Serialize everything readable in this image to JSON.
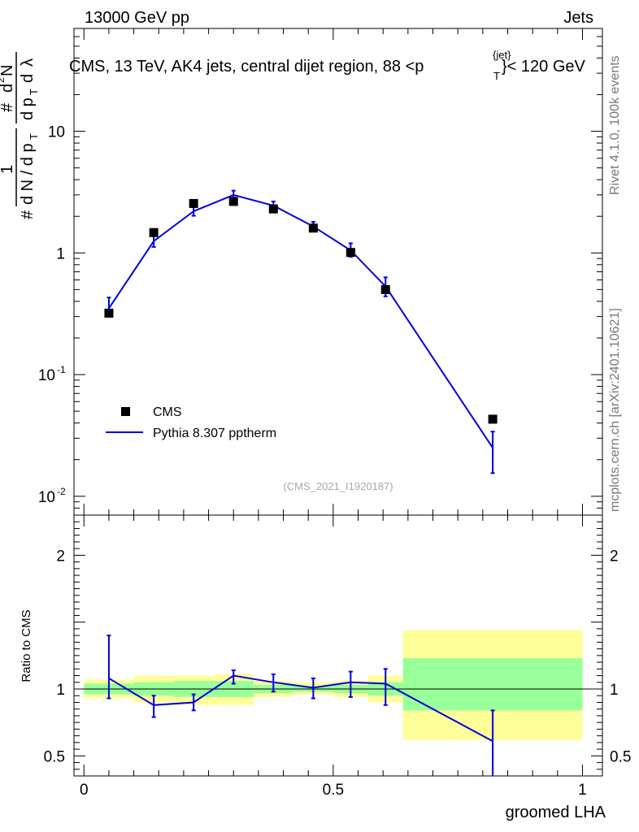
{
  "header": {
    "left": "13000 GeV pp",
    "right": "Jets"
  },
  "side_labels": {
    "rivet": "Rivet 4.1.0,  100k events",
    "mcplots": "mcplots.cern.ch [arXiv:2401.10621]"
  },
  "colors": {
    "mc": "#0000dd",
    "data": "#000000",
    "band_inner": "#99ff99",
    "band_outer": "#ffff99"
  },
  "chart_data": [
    {
      "type": "scatter",
      "title_prefix": "CMS, 13 TeV, AK4 jets, central dijet region, 88 <p",
      "title_sup": "{jet}",
      "title_sub": "T",
      "title_suffix": "}< 120 GeV",
      "ylabel": "# (1/ dN/dpT) (#d²N / dpT dλ)",
      "yscale": "log",
      "ylim": [
        0.007,
        70
      ],
      "xlim": [
        -0.02,
        1.04
      ],
      "y_ticks": [
        {
          "value": 0.01,
          "base": "10",
          "exp": "-2"
        },
        {
          "value": 0.1,
          "base": "10",
          "exp": "-1"
        },
        {
          "value": 1,
          "base": "1",
          "exp": ""
        },
        {
          "value": 10,
          "base": "10",
          "exp": ""
        }
      ],
      "watermark": "(CMS_2021_I1920187)",
      "legend": {
        "data_label": "CMS",
        "mc_label": "Pythia 8.307 pptherm",
        "position": "bottom-left"
      },
      "data": {
        "name": "CMS",
        "x": [
          0.05,
          0.14,
          0.22,
          0.3,
          0.38,
          0.46,
          0.535,
          0.605,
          0.82
        ],
        "y": [
          0.32,
          1.47,
          2.55,
          2.65,
          2.3,
          1.6,
          1.01,
          0.5,
          0.043
        ]
      },
      "mc": {
        "name": "Pythia 8.307 pptherm",
        "x": [
          0.05,
          0.14,
          0.22,
          0.3,
          0.38,
          0.46,
          0.535,
          0.605,
          0.82
        ],
        "y": [
          0.35,
          1.25,
          2.2,
          3.0,
          2.45,
          1.65,
          1.05,
          0.53,
          0.025
        ],
        "err_low": [
          0.3,
          1.12,
          2.02,
          2.8,
          2.28,
          1.52,
          0.93,
          0.44,
          0.0155
        ],
        "err_high": [
          0.43,
          1.4,
          2.4,
          3.25,
          2.65,
          1.8,
          1.2,
          0.63,
          0.034
        ]
      }
    },
    {
      "type": "line",
      "ylabel": "Ratio to CMS",
      "xlabel": "groomed LHA",
      "ylim": [
        0.35,
        2.3
      ],
      "xlim": [
        -0.02,
        1.04
      ],
      "x_ticks": [
        {
          "value": 0,
          "label": "0"
        },
        {
          "value": 0.5,
          "label": "0.5"
        },
        {
          "value": 1,
          "label": "1"
        }
      ],
      "y_ticks": [
        {
          "value": 0.5,
          "label": "0.5"
        },
        {
          "value": 1,
          "label": "1"
        },
        {
          "value": 2,
          "label": "2"
        }
      ],
      "bands": [
        {
          "x0": 0.0,
          "x1": 0.1,
          "inner": [
            0.96,
            1.04
          ],
          "outer": [
            0.93,
            1.07
          ]
        },
        {
          "x0": 0.1,
          "x1": 0.18,
          "inner": [
            0.95,
            1.05
          ],
          "outer": [
            0.9,
            1.1
          ]
        },
        {
          "x0": 0.18,
          "x1": 0.26,
          "inner": [
            0.94,
            1.06
          ],
          "outer": [
            0.88,
            1.1
          ]
        },
        {
          "x0": 0.26,
          "x1": 0.34,
          "inner": [
            0.94,
            1.06
          ],
          "outer": [
            0.88,
            1.11
          ]
        },
        {
          "x0": 0.34,
          "x1": 0.42,
          "inner": [
            0.97,
            1.03
          ],
          "outer": [
            0.94,
            1.06
          ]
        },
        {
          "x0": 0.42,
          "x1": 0.5,
          "inner": [
            0.98,
            1.02
          ],
          "outer": [
            0.96,
            1.05
          ]
        },
        {
          "x0": 0.5,
          "x1": 0.57,
          "inner": [
            0.97,
            1.03
          ],
          "outer": [
            0.94,
            1.06
          ]
        },
        {
          "x0": 0.57,
          "x1": 0.64,
          "inner": [
            0.95,
            1.05
          ],
          "outer": [
            0.9,
            1.1
          ]
        },
        {
          "x0": 0.64,
          "x1": 1.0,
          "inner": [
            0.84,
            1.23
          ],
          "outer": [
            0.62,
            1.44
          ]
        }
      ],
      "mc": {
        "x": [
          0.05,
          0.14,
          0.22,
          0.3,
          0.38,
          0.46,
          0.535,
          0.605,
          0.82
        ],
        "y": [
          1.08,
          0.88,
          0.9,
          1.1,
          1.05,
          1.01,
          1.05,
          1.04,
          0.61
        ],
        "err_low": [
          0.93,
          0.79,
          0.84,
          1.04,
          0.98,
          0.93,
          0.94,
          0.88,
          0.33
        ],
        "err_high": [
          1.4,
          0.95,
          0.96,
          1.14,
          1.11,
          1.08,
          1.13,
          1.15,
          0.84
        ]
      }
    }
  ]
}
